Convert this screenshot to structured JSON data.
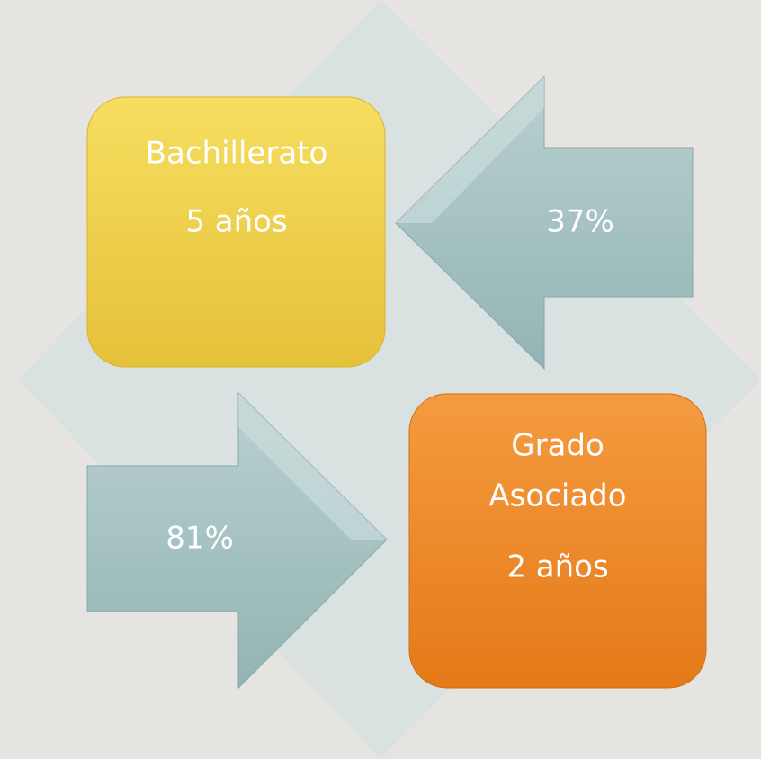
{
  "nodes": [
    {
      "lines": [
        "Bachillerato",
        "5 años"
      ]
    },
    {
      "lines": [
        "Grado",
        "Asociado",
        "2 años"
      ]
    }
  ],
  "arrows": [
    {
      "label": "37%"
    },
    {
      "label": "81%"
    }
  ]
}
